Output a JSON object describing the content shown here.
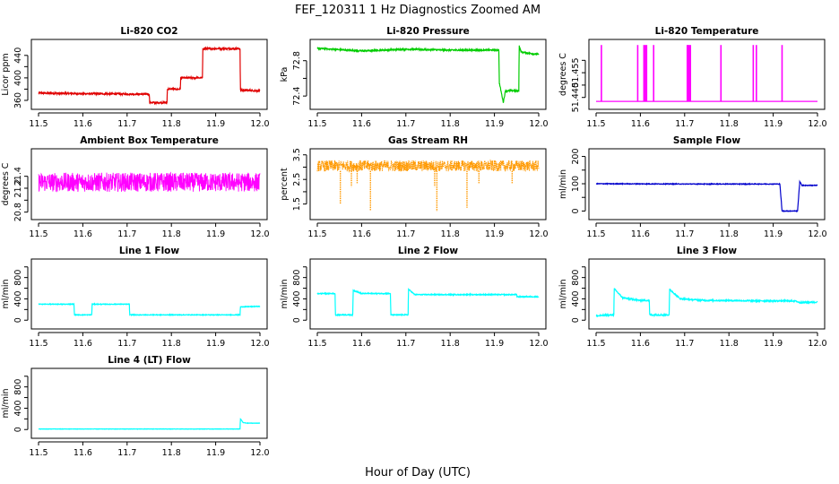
{
  "figure": {
    "title": "FEF_120311  1 Hz Diagnostics Zoomed AM",
    "xlabel": "Hour of Day (UTC)"
  },
  "chart_data": [
    {
      "type": "line",
      "title": "Li-820 CO2",
      "ylabel": "Licor ppm",
      "color": "#e00000",
      "xlim": [
        11.5,
        12.0
      ],
      "ylim": [
        352,
        462
      ],
      "xticks": [
        "11.5",
        "11.6",
        "11.7",
        "11.8",
        "11.9",
        "12.0"
      ],
      "yticks": [
        360,
        380,
        400,
        420,
        440
      ],
      "ytick_labels": [
        "360",
        "",
        "400",
        "",
        "440"
      ],
      "noise": 1.5,
      "series": [
        {
          "x": [
            11.5,
            11.6,
            11.75,
            11.751,
            11.79,
            11.791,
            11.82,
            11.821,
            11.87,
            11.871,
            11.955,
            11.956,
            11.97,
            12.0
          ],
          "values": [
            373,
            372,
            371,
            356,
            356,
            380,
            380,
            400,
            400,
            452,
            452,
            378,
            378,
            377
          ]
        }
      ]
    },
    {
      "type": "line",
      "title": "Li-820 Pressure",
      "ylabel": "kPa",
      "color": "#00cc00",
      "xlim": [
        11.5,
        12.0
      ],
      "ylim": [
        72.3,
        73.0
      ],
      "xticks": [
        "11.5",
        "11.6",
        "11.7",
        "11.8",
        "11.9",
        "12.0"
      ],
      "yticks": [
        72.4,
        72.6,
        72.8
      ],
      "ytick_labels": [
        "72.4",
        "",
        "72.8"
      ],
      "noise": 0.008,
      "series": [
        {
          "x": [
            11.5,
            11.6,
            11.7,
            11.8,
            11.91,
            11.911,
            11.92,
            11.925,
            11.955,
            11.956,
            11.96,
            11.97,
            12.0
          ],
          "values": [
            72.94,
            72.91,
            72.93,
            72.92,
            72.92,
            72.55,
            72.33,
            72.46,
            72.46,
            72.97,
            72.9,
            72.89,
            72.87
          ]
        }
      ]
    },
    {
      "type": "line",
      "title": "Li-820 Temperature",
      "ylabel": "degrees C",
      "color": "#ff00ff",
      "xlim": [
        11.5,
        12.0
      ],
      "ylim": [
        51.437,
        51.462
      ],
      "xticks": [
        "11.5",
        "11.6",
        "11.7",
        "11.8",
        "11.9",
        "12.0"
      ],
      "yticks": [
        51.44,
        51.445,
        51.45,
        51.455
      ],
      "ytick_labels": [
        "51.440",
        "",
        "51.455",
        ""
      ],
      "baseline": 51.4384,
      "spike_to": 51.4612,
      "spikes_x": [
        11.512,
        11.594,
        11.608,
        11.611,
        11.614,
        11.63,
        11.706,
        11.708,
        11.71,
        11.713,
        11.782,
        11.855,
        11.862,
        11.92
      ]
    },
    {
      "type": "line",
      "title": "Ambient Box Temperature",
      "ylabel": "degrees C",
      "color": "#ff00ff",
      "xlim": [
        11.5,
        12.0
      ],
      "ylim": [
        20.75,
        21.8
      ],
      "xticks": [
        "11.5",
        "11.6",
        "11.7",
        "11.8",
        "11.9",
        "12.0"
      ],
      "yticks": [
        20.8,
        21.0,
        21.2,
        21.4
      ],
      "ytick_labels": [
        "20.8",
        "",
        "21.2",
        "21.4"
      ],
      "center": 21.3,
      "spread": 0.32
    },
    {
      "type": "scatter",
      "title": "Gas Stream RH",
      "ylabel": "percent",
      "color": "#ff9900",
      "xlim": [
        11.5,
        12.0
      ],
      "ylim": [
        1.05,
        3.6
      ],
      "xticks": [
        "11.5",
        "11.6",
        "11.7",
        "11.8",
        "11.9",
        "12.0"
      ],
      "yticks": [
        1.5,
        2.0,
        2.5,
        3.0,
        3.5
      ],
      "ytick_labels": [
        "1.5",
        "",
        "2.5",
        "",
        "3.5"
      ],
      "center": 3.05,
      "spread": 0.45,
      "dips": [
        {
          "x": 11.552,
          "y": 1.5
        },
        {
          "x": 11.577,
          "y": 2.2
        },
        {
          "x": 11.62,
          "y": 1.25
        },
        {
          "x": 11.59,
          "y": 2.35
        },
        {
          "x": 11.77,
          "y": 1.2
        },
        {
          "x": 11.765,
          "y": 2.2
        },
        {
          "x": 11.838,
          "y": 1.35
        },
        {
          "x": 11.865,
          "y": 2.35
        },
        {
          "x": 11.94,
          "y": 2.35
        }
      ]
    },
    {
      "type": "line",
      "title": "Sample Flow",
      "ylabel": "ml/min",
      "color": "#0000cc",
      "xlim": [
        11.5,
        12.0
      ],
      "ylim": [
        -15,
        215
      ],
      "xticks": [
        "11.5",
        "11.6",
        "11.7",
        "11.8",
        "11.9",
        "12.0"
      ],
      "yticks": [
        0,
        50,
        100,
        150,
        200
      ],
      "ytick_labels": [
        "0",
        "",
        "100",
        "",
        "200"
      ],
      "noise": 1.2,
      "series": [
        {
          "x": [
            11.5,
            11.7,
            11.915,
            11.92,
            11.955,
            11.96,
            11.965,
            12.0
          ],
          "values": [
            100,
            99,
            99,
            0,
            0,
            108,
            94,
            94
          ]
        }
      ]
    },
    {
      "type": "line",
      "title": "Line 1 Flow",
      "ylabel": "ml/min",
      "color": "#00ffff",
      "xlim": [
        11.5,
        12.0
      ],
      "ylim": [
        -80,
        1080
      ],
      "xticks": [
        "11.5",
        "11.6",
        "11.7",
        "11.8",
        "11.9",
        "12.0"
      ],
      "yticks": [
        0,
        200,
        400,
        600,
        800,
        1000
      ],
      "ytick_labels": [
        "0",
        "",
        "400",
        "",
        "800",
        ""
      ],
      "noise": 6,
      "series": [
        {
          "x": [
            11.5,
            11.58,
            11.581,
            11.62,
            11.621,
            11.705,
            11.706,
            11.955,
            11.956,
            12.0
          ],
          "values": [
            300,
            300,
            100,
            100,
            300,
            300,
            100,
            100,
            250,
            260
          ]
        }
      ]
    },
    {
      "type": "line",
      "title": "Line 2 Flow",
      "ylabel": "ml/min",
      "color": "#00ffff",
      "xlim": [
        11.5,
        12.0
      ],
      "ylim": [
        -80,
        1080
      ],
      "xticks": [
        "11.5",
        "11.6",
        "11.7",
        "11.8",
        "11.9",
        "12.0"
      ],
      "yticks": [
        0,
        200,
        400,
        600,
        800,
        1000
      ],
      "ytick_labels": [
        "0",
        "",
        "400",
        "",
        "800",
        ""
      ],
      "noise": 8,
      "series": [
        {
          "x": [
            11.5,
            11.54,
            11.541,
            11.58,
            11.581,
            11.6,
            11.665,
            11.666,
            11.705,
            11.706,
            11.72,
            11.95,
            11.951,
            12.0
          ],
          "values": [
            500,
            500,
            100,
            100,
            560,
            500,
            500,
            100,
            100,
            580,
            480,
            480,
            440,
            440
          ]
        }
      ]
    },
    {
      "type": "line",
      "title": "Line 3 Flow",
      "ylabel": "ml/min",
      "color": "#00ffff",
      "xlim": [
        11.5,
        12.0
      ],
      "ylim": [
        -80,
        1080
      ],
      "xticks": [
        "11.5",
        "11.6",
        "11.7",
        "11.8",
        "11.9",
        "12.0"
      ],
      "yticks": [
        0,
        200,
        400,
        600,
        800,
        1000
      ],
      "ytick_labels": [
        "0",
        "",
        "400",
        "",
        "800",
        ""
      ],
      "noise": 12,
      "series": [
        {
          "x": [
            11.5,
            11.54,
            11.541,
            11.56,
            11.6,
            11.62,
            11.621,
            11.665,
            11.666,
            11.69,
            11.75,
            11.95,
            11.96,
            12.0
          ],
          "values": [
            80,
            100,
            590,
            420,
            370,
            370,
            100,
            100,
            580,
            400,
            370,
            360,
            330,
            340
          ]
        }
      ]
    },
    {
      "type": "line",
      "title": "Line 4 (LT) Flow",
      "ylabel": "ml/min",
      "color": "#00ffff",
      "xlim": [
        11.5,
        12.0
      ],
      "ylim": [
        -80,
        1080
      ],
      "xticks": [
        "11.5",
        "11.6",
        "11.7",
        "11.8",
        "11.9",
        "12.0"
      ],
      "yticks": [
        0,
        200,
        400,
        600,
        800,
        1000
      ],
      "ytick_labels": [
        "0",
        "",
        "400",
        "",
        "800",
        ""
      ],
      "noise": 3,
      "series": [
        {
          "x": [
            11.5,
            11.955,
            11.956,
            11.962,
            11.97,
            12.0
          ],
          "values": [
            10,
            10,
            200,
            130,
            120,
            120
          ]
        }
      ]
    }
  ]
}
